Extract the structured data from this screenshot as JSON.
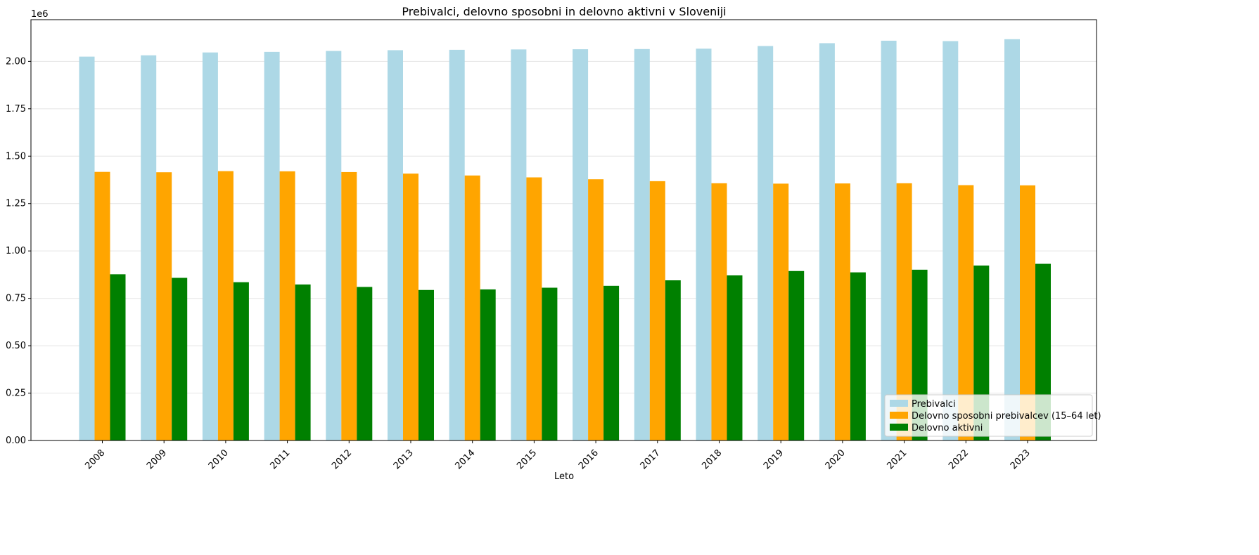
{
  "chart_data": {
    "type": "bar",
    "title": "Prebivalci, delovno sposobni in delovno aktivni v Sloveniji",
    "xlabel": "Leto",
    "ylabel": "",
    "y_multiplier_label": "1e6",
    "ylim": [
      0,
      2.22
    ],
    "yticks": [
      "0.00",
      "0.25",
      "0.50",
      "0.75",
      "1.00",
      "1.25",
      "1.50",
      "1.75",
      "2.00"
    ],
    "grid": "y",
    "legend_position": "lower-right",
    "categories": [
      "2008",
      "2009",
      "2010",
      "2011",
      "2012",
      "2013",
      "2014",
      "2015",
      "2016",
      "2017",
      "2018",
      "2019",
      "2020",
      "2021",
      "2022",
      "2023"
    ],
    "series": [
      {
        "name": "Prebivalci",
        "color": "#add8e6",
        "values": [
          2.025,
          2.032,
          2.047,
          2.05,
          2.055,
          2.059,
          2.061,
          2.063,
          2.064,
          2.065,
          2.067,
          2.081,
          2.096,
          2.109,
          2.107,
          2.117
        ]
      },
      {
        "name": "Delovno sposobni prebivalcev (15–64 let)",
        "color": "#ffa500",
        "values": [
          1.417,
          1.415,
          1.421,
          1.42,
          1.416,
          1.408,
          1.398,
          1.388,
          1.378,
          1.368,
          1.357,
          1.355,
          1.356,
          1.357,
          1.347,
          1.346
        ]
      },
      {
        "name": "Delovno aktivni",
        "color": "#008000",
        "values": [
          0.877,
          0.858,
          0.835,
          0.823,
          0.81,
          0.794,
          0.797,
          0.806,
          0.816,
          0.845,
          0.871,
          0.894,
          0.887,
          0.901,
          0.923,
          0.932
        ]
      }
    ]
  }
}
